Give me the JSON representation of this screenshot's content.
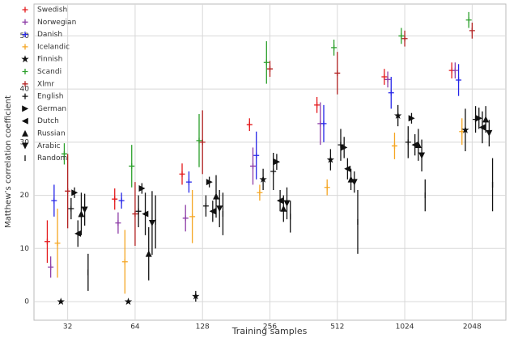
{
  "chart_data": {
    "type": "errorbar",
    "x_label": "Training samples",
    "y_label": "Matthew’s correlation coefficient",
    "categories": [
      "32",
      "64",
      "128",
      "256",
      "512",
      "1024",
      "2048"
    ],
    "ylim": [
      -3.5,
      56
    ],
    "yticks": [
      0,
      10,
      20,
      30,
      40,
      50
    ],
    "grid": true,
    "legend": "upper left",
    "series": [
      {
        "name": "Swedish",
        "color": "#e41a1c",
        "marker": "plus",
        "values": [
          11.3,
          19.3,
          24,
          33.3,
          37,
          42.3,
          43.5
        ],
        "errors": [
          4,
          2,
          2,
          1.2,
          1.5,
          1.5,
          1.5
        ]
      },
      {
        "name": "Norwegian",
        "color": "#8e3fa8",
        "marker": "plus",
        "values": [
          6.5,
          14.8,
          15.7,
          25.5,
          33.5,
          41.8,
          43.5
        ],
        "errors": [
          2,
          2,
          2.5,
          3.5,
          4,
          1.5,
          1.5
        ]
      },
      {
        "name": "Danish",
        "color": "#2525e8",
        "marker": "plus",
        "values": [
          19,
          19,
          22.5,
          27.5,
          33.5,
          39.3,
          41.7
        ],
        "errors": [
          3,
          1.5,
          2,
          4.5,
          3.5,
          3,
          3
        ]
      },
      {
        "name": "Icelandic",
        "color": "#f5a623",
        "marker": "plus",
        "values": [
          11,
          7.5,
          16,
          20.5,
          21.5,
          29.3,
          32
        ],
        "errors": [
          6.5,
          6,
          5,
          1.5,
          1.5,
          2.5,
          2.5
        ]
      },
      {
        "name": "Finnish",
        "color": "#111111",
        "marker": "star",
        "values": [
          0,
          0,
          1,
          23,
          26.7,
          35,
          32.3
        ],
        "errors": [
          0.3,
          0.3,
          1,
          2,
          2,
          2,
          4
        ]
      },
      {
        "name": "Scandi",
        "color": "#2ca02c",
        "marker": "plus",
        "values": [
          27.8,
          25.5,
          30.3,
          45,
          47.8,
          50,
          53
        ],
        "errors": [
          2,
          4,
          5,
          4,
          1.5,
          1.5,
          1.5
        ]
      },
      {
        "name": "Xlmr",
        "color": "#b22222",
        "marker": "plus",
        "values": [
          20.8,
          16.5,
          30,
          43.8,
          43,
          49.5,
          51
        ],
        "errors": [
          7,
          6,
          6,
          1.5,
          4,
          1.5,
          1.5
        ]
      },
      {
        "name": "English",
        "color": "#111111",
        "marker": "plus",
        "values": [
          17.5,
          17,
          18,
          24.5,
          29.5,
          30,
          34.3
        ],
        "errors": [
          2,
          3,
          2,
          3.5,
          3,
          3,
          2.5
        ]
      },
      {
        "name": "German",
        "color": "#111111",
        "marker": "right",
        "values": [
          20.5,
          21.3,
          22.5,
          26.3,
          29,
          34.5,
          34.5
        ],
        "errors": [
          1,
          1,
          1,
          1.5,
          2,
          1,
          2
        ]
      },
      {
        "name": "Dutch",
        "color": "#111111",
        "marker": "left",
        "values": [
          12.8,
          16.5,
          17,
          19,
          25,
          29.5,
          32.8
        ],
        "errors": [
          2.5,
          4,
          2,
          2,
          2,
          2,
          3
        ]
      },
      {
        "name": "Russian",
        "color": "#111111",
        "marker": "up",
        "values": [
          16.5,
          9,
          19.8,
          17.5,
          23,
          29.5,
          34.3
        ],
        "errors": [
          4,
          5,
          4,
          2.5,
          2,
          3,
          2.5
        ]
      },
      {
        "name": "Arabic",
        "color": "#111111",
        "marker": "down",
        "values": [
          17.3,
          14.8,
          17.5,
          18.5,
          22.5,
          27.5,
          31.7
        ],
        "errors": [
          3,
          6,
          3.5,
          3,
          2,
          3,
          2.5
        ]
      },
      {
        "name": "Random",
        "color": "#111111",
        "marker": "vline",
        "values": [
          5.5,
          15,
          16.5,
          16,
          15,
          20,
          22
        ],
        "errors": [
          3.5,
          5,
          4,
          3,
          6,
          3,
          5
        ]
      }
    ]
  }
}
